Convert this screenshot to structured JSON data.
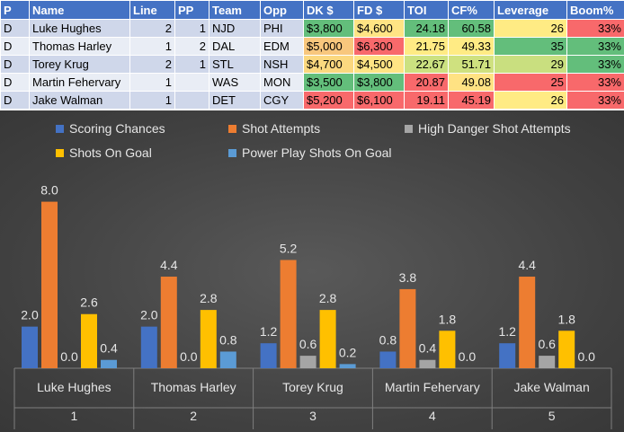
{
  "table": {
    "headers": [
      "P",
      "Name",
      "Line",
      "PP",
      "Team",
      "Opp",
      "DK $",
      "FD $",
      "TOI",
      "CF%",
      "Leverage",
      "Boom%"
    ],
    "rows": [
      {
        "p": "D",
        "name": "Luke Hughes",
        "line": "2",
        "pp": "1",
        "team": "NJD",
        "opp": "PHI",
        "dk": "$3,800",
        "fd": "$4,600",
        "toi": "24.18",
        "cf": "60.58",
        "leverage": "26",
        "boom": "33%"
      },
      {
        "p": "D",
        "name": "Thomas Harley",
        "line": "1",
        "pp": "2",
        "team": "DAL",
        "opp": "EDM",
        "dk": "$5,000",
        "fd": "$6,300",
        "toi": "21.75",
        "cf": "49.33",
        "leverage": "35",
        "boom": "33%"
      },
      {
        "p": "D",
        "name": "Torey Krug",
        "line": "2",
        "pp": "1",
        "team": "STL",
        "opp": "NSH",
        "dk": "$4,700",
        "fd": "$4,500",
        "toi": "22.67",
        "cf": "51.71",
        "leverage": "29",
        "boom": "33%"
      },
      {
        "p": "D",
        "name": "Martin Fehervary",
        "line": "1",
        "pp": "",
        "team": "WAS",
        "opp": "MON",
        "dk": "$3,500",
        "fd": "$3,800",
        "toi": "20.87",
        "cf": "49.08",
        "leverage": "25",
        "boom": "33%"
      },
      {
        "p": "D",
        "name": "Jake Walman",
        "line": "1",
        "pp": "",
        "team": "DET",
        "opp": "CGY",
        "dk": "$5,200",
        "fd": "$6,100",
        "toi": "19.11",
        "cf": "45.19",
        "leverage": "26",
        "boom": "33%"
      }
    ],
    "cell_colors": {
      "dk": [
        "#63be7b",
        "#f8c77d",
        "#fbd87f",
        "#63be7b",
        "#f8696b"
      ],
      "fd": [
        "#ffe484",
        "#f8696b",
        "#ffe484",
        "#63be7b",
        "#f8696b"
      ],
      "toi": [
        "#63be7b",
        "#ffeb84",
        "#cbe180",
        "#f8696b",
        "#f8696b"
      ],
      "cf": [
        "#63be7b",
        "#ffeb84",
        "#cfe17f",
        "#ffe283",
        "#f8696b"
      ],
      "leverage": [
        "#ffeb84",
        "#63be7b",
        "#c9df7f",
        "#f8696b",
        "#ffeb84"
      ],
      "boom": [
        "#f8696b",
        "#63be7b",
        "#63be7b",
        "#f8696b",
        "#f8696b"
      ]
    }
  },
  "chart_data": {
    "type": "bar",
    "categories": [
      {
        "name": "Luke Hughes",
        "index": "1"
      },
      {
        "name": "Thomas Harley",
        "index": "2"
      },
      {
        "name": "Torey Krug",
        "index": "3"
      },
      {
        "name": "Martin Fehervary",
        "index": "4"
      },
      {
        "name": "Jake Walman",
        "index": "5"
      }
    ],
    "series": [
      {
        "name": "Scoring Chances",
        "color": "#4472c4",
        "values": [
          2.0,
          2.0,
          1.2,
          0.8,
          1.2
        ]
      },
      {
        "name": "Shot Attempts",
        "color": "#ed7d31",
        "values": [
          8.0,
          4.4,
          5.2,
          3.8,
          4.4
        ]
      },
      {
        "name": "High Danger Shot Attempts",
        "color": "#a5a5a5",
        "values": [
          0.0,
          0.0,
          0.6,
          0.4,
          0.6
        ]
      },
      {
        "name": "Shots On Goal",
        "color": "#ffc000",
        "values": [
          2.6,
          2.8,
          2.8,
          1.8,
          1.8
        ]
      },
      {
        "name": "Power Play Shots On Goal",
        "color": "#5b9bd5",
        "values": [
          0.4,
          0.8,
          0.2,
          0.0,
          0.0
        ]
      }
    ],
    "value_labels": [
      [
        "2.0",
        "8.0",
        "0.0",
        "2.6",
        "0.4"
      ],
      [
        "2.0",
        "4.4",
        "0.0",
        "2.8",
        "0.8"
      ],
      [
        "1.2",
        "5.2",
        "0.6",
        "2.8",
        "0.2"
      ],
      [
        "0.8",
        "3.8",
        "0.4",
        "1.8",
        "0.0"
      ],
      [
        "1.2",
        "4.4",
        "0.6",
        "1.8",
        "0.0"
      ]
    ],
    "legend_position": "top",
    "ylim": [
      0,
      8.5
    ],
    "grid": false
  }
}
